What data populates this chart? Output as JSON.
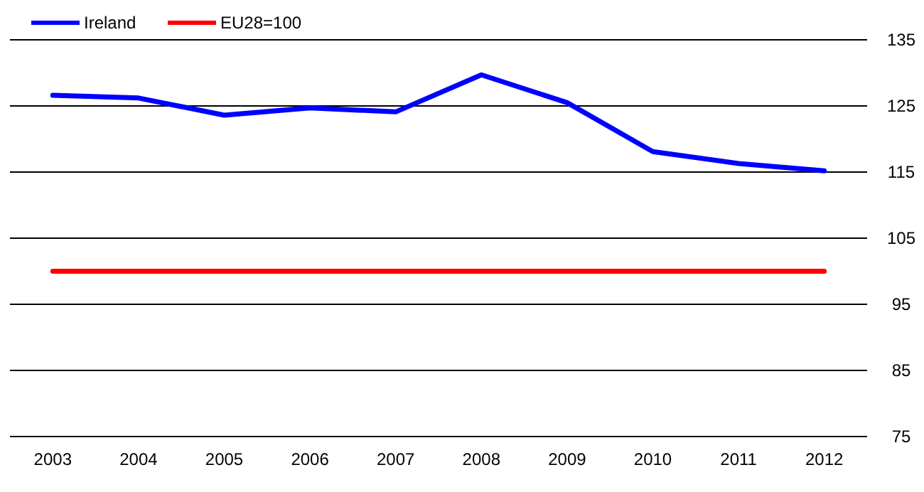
{
  "chart_data": {
    "type": "line",
    "categories": [
      "2003",
      "2004",
      "2005",
      "2006",
      "2007",
      "2008",
      "2009",
      "2010",
      "2011",
      "2012"
    ],
    "series": [
      {
        "name": "Ireland",
        "color": "#0000ff",
        "values": [
          126.6,
          126.2,
          123.6,
          124.7,
          124.1,
          129.7,
          125.5,
          118.1,
          116.3,
          115.2
        ]
      },
      {
        "name": "EU28=100",
        "color": "#ff0000",
        "values": [
          100,
          100,
          100,
          100,
          100,
          100,
          100,
          100,
          100,
          100
        ]
      }
    ],
    "ylim": [
      75,
      135
    ],
    "yticks": [
      75,
      85,
      95,
      105,
      115,
      125,
      135
    ],
    "grid": "y",
    "legend": "top left",
    "marker": "none",
    "line_style": "solid"
  }
}
